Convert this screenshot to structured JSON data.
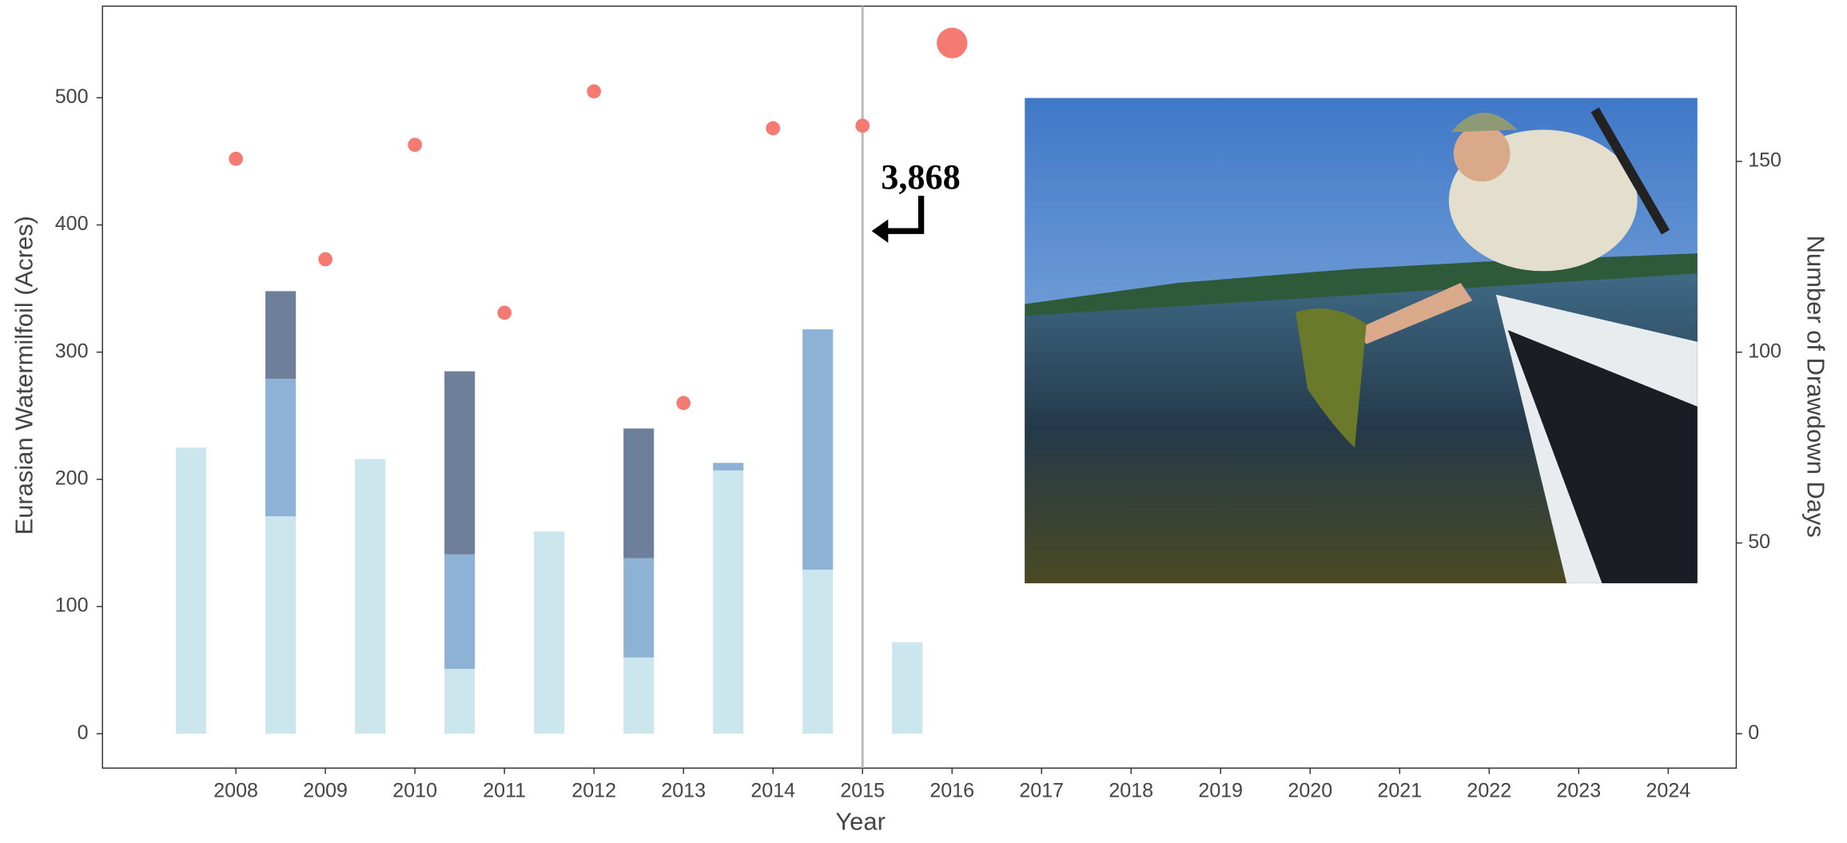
{
  "chart_data": {
    "type": "combo",
    "x_label": "Year",
    "y_label": "Eurasian Watermilfoil (Acres)",
    "y2_label": "Number of Drawdown Days",
    "xlim": [
      2006.51,
      2024.76
    ],
    "xticks": [
      2008,
      2009,
      2010,
      2011,
      2012,
      2013,
      2014,
      2015,
      2016,
      2017,
      2018,
      2019,
      2020,
      2021,
      2022,
      2023,
      2024
    ],
    "ylim": [
      -27,
      572
    ],
    "yticks": [
      0,
      100,
      200,
      300,
      400,
      500
    ],
    "y2lim": [
      -9,
      190.7
    ],
    "y2ticks": [
      0,
      50,
      100,
      150
    ],
    "vline": 2015,
    "annotation": {
      "text": "3,868",
      "x": 2015.65,
      "y": 435
    },
    "series": [
      {
        "type": "bar",
        "axis": "y2",
        "color": "#cce6ee",
        "x": [
          2007.5,
          2008.5,
          2009.5,
          2010.5,
          2011.5,
          2012.5,
          2013.5,
          2014.5,
          2015.5
        ],
        "values": [
          75,
          57,
          72,
          17,
          53,
          20,
          69,
          43,
          24
        ]
      },
      {
        "type": "bar",
        "axis": "y2",
        "color": "#8db2d6",
        "x": [
          2007.5,
          2008.5,
          2009.5,
          2010.5,
          2011.5,
          2012.5,
          2013.5,
          2014.5,
          2015.5
        ],
        "values": [
          null,
          36,
          null,
          30,
          null,
          26,
          2,
          63,
          null
        ]
      },
      {
        "type": "bar",
        "axis": "y2",
        "color": "#6e7f9c",
        "x": [
          2007.5,
          2008.5,
          2009.5,
          2010.5,
          2011.5,
          2012.5,
          2013.5,
          2014.5,
          2015.5
        ],
        "values": [
          null,
          23,
          null,
          48,
          null,
          34,
          null,
          null,
          null
        ]
      },
      {
        "type": "line",
        "color": "#f47a72",
        "x": [
          2008,
          2009,
          2010,
          2011,
          2012,
          2013,
          2014,
          2015,
          2016
        ],
        "values": [
          452,
          373,
          463,
          331,
          505,
          260,
          476,
          478,
          543
        ]
      }
    ]
  }
}
